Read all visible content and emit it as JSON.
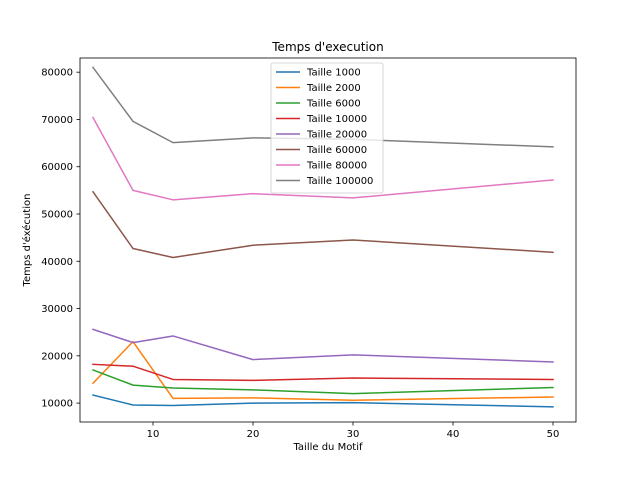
{
  "chart_data": {
    "type": "line",
    "title": "Temps d'execution",
    "xlabel": "Taille du Motif",
    "ylabel": "Temps d'éxécution",
    "xlim": [
      2.7,
      52.3
    ],
    "ylim": [
      6000,
      83000
    ],
    "xticks": [
      10,
      20,
      30,
      40,
      50
    ],
    "yticks": [
      10000,
      20000,
      30000,
      40000,
      50000,
      60000,
      70000,
      80000
    ],
    "grid": false,
    "legend_position": "upper center",
    "x": [
      4,
      8,
      12,
      20,
      30,
      50
    ],
    "series": [
      {
        "name": "Taille 1000",
        "color": "#1f77b4",
        "values": [
          11700,
          9600,
          9500,
          10000,
          10100,
          9200
        ]
      },
      {
        "name": "Taille 2000",
        "color": "#ff7f0e",
        "values": [
          14200,
          23000,
          11000,
          11100,
          10600,
          11300
        ]
      },
      {
        "name": "Taille 6000",
        "color": "#2ca02c",
        "values": [
          17000,
          13800,
          13200,
          12800,
          12000,
          13300
        ]
      },
      {
        "name": "Taille 10000",
        "color": "#d62728",
        "values": [
          18200,
          17800,
          15000,
          14800,
          15300,
          15000
        ]
      },
      {
        "name": "Taille 20000",
        "color": "#9467bd",
        "values": [
          25600,
          22800,
          24200,
          19200,
          20200,
          18700
        ]
      },
      {
        "name": "Taille 60000",
        "color": "#8c564b",
        "values": [
          54700,
          42700,
          40800,
          43400,
          44500,
          41900
        ]
      },
      {
        "name": "Taille 80000",
        "color": "#e377c2",
        "values": [
          70400,
          55000,
          53000,
          54300,
          53400,
          57200
        ]
      },
      {
        "name": "Taille 100000",
        "color": "#7f7f7f",
        "values": [
          81000,
          69600,
          65100,
          66100,
          65800,
          64200
        ]
      }
    ]
  }
}
